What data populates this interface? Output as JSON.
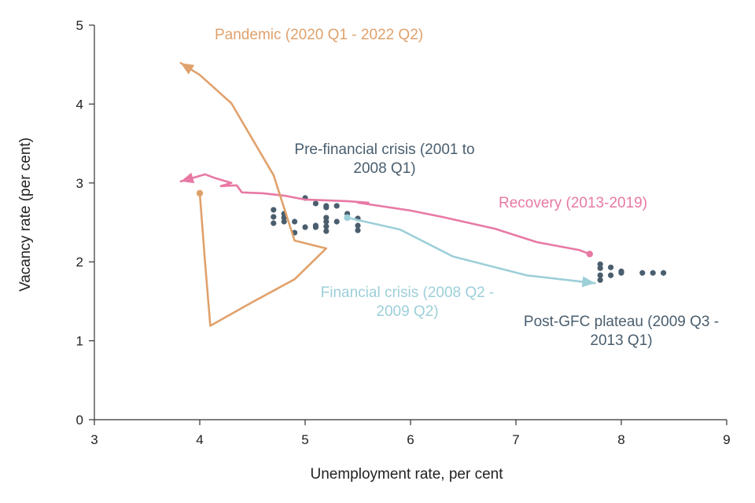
{
  "chart_data": {
    "type": "scatter",
    "title": "",
    "xlabel": "Unemployment rate, per cent",
    "ylabel": "Vacancy rate (per cent)",
    "xlim": [
      3,
      9
    ],
    "ylim": [
      0,
      5
    ],
    "xticks": [
      3,
      4,
      5,
      6,
      7,
      8,
      9
    ],
    "yticks": [
      0,
      1,
      2,
      3,
      4,
      5
    ],
    "xtick_labels": [
      "3",
      "4",
      "5",
      "6",
      "7",
      "8",
      "9"
    ],
    "ytick_labels": [
      "0",
      "1",
      "2",
      "3",
      "4",
      "5"
    ],
    "grid": false,
    "series": [
      {
        "name": "Pre-financial crisis (2001 to 2008 Q1)",
        "style": "points",
        "color": "#4a5e6e",
        "points": [
          [
            4.7,
            2.66
          ],
          [
            4.7,
            2.57
          ],
          [
            4.7,
            2.49
          ],
          [
            4.8,
            2.61
          ],
          [
            4.8,
            2.56
          ],
          [
            4.8,
            2.51
          ],
          [
            4.9,
            2.51
          ],
          [
            4.9,
            2.37
          ],
          [
            5.0,
            2.81
          ],
          [
            5.0,
            2.44
          ],
          [
            5.1,
            2.74
          ],
          [
            5.1,
            2.46
          ],
          [
            5.1,
            2.44
          ],
          [
            5.2,
            2.71
          ],
          [
            5.2,
            2.69
          ],
          [
            5.2,
            2.56
          ],
          [
            5.2,
            2.51
          ],
          [
            5.2,
            2.45
          ],
          [
            5.2,
            2.39
          ],
          [
            5.3,
            2.71
          ],
          [
            5.3,
            2.51
          ],
          [
            5.4,
            2.61
          ],
          [
            5.5,
            2.55
          ],
          [
            5.5,
            2.46
          ],
          [
            5.5,
            2.4
          ]
        ]
      },
      {
        "name": "Financial crisis (2008 Q2 - 2009 Q2)",
        "style": "arrow-line",
        "color": "#9dcfd9",
        "points": [
          [
            5.4,
            2.56
          ],
          [
            5.9,
            2.41
          ],
          [
            6.4,
            2.07
          ],
          [
            7.1,
            1.83
          ],
          [
            7.75,
            1.73
          ]
        ]
      },
      {
        "name": "Post-GFC plateau (2009 Q3 - 2013 Q1)",
        "style": "points",
        "color": "#4a5e6e",
        "points": [
          [
            7.8,
            1.97
          ],
          [
            7.8,
            1.92
          ],
          [
            7.8,
            1.83
          ],
          [
            7.8,
            1.77
          ],
          [
            7.9,
            1.93
          ],
          [
            7.9,
            1.83
          ],
          [
            8.0,
            1.88
          ],
          [
            8.0,
            1.86
          ],
          [
            8.2,
            1.86
          ],
          [
            8.3,
            1.86
          ],
          [
            8.4,
            1.86
          ]
        ]
      },
      {
        "name": "Recovery (2013-2019)",
        "style": "arrow-line",
        "color": "#e879a4",
        "points": [
          [
            7.7,
            2.1
          ],
          [
            7.6,
            2.15
          ],
          [
            7.2,
            2.25
          ],
          [
            6.8,
            2.42
          ],
          [
            6.3,
            2.57
          ],
          [
            6.0,
            2.65
          ],
          [
            5.6,
            2.73
          ],
          [
            5.5,
            2.75
          ],
          [
            5.6,
            2.75
          ],
          [
            5.4,
            2.77
          ],
          [
            5.0,
            2.79
          ],
          [
            4.8,
            2.84
          ],
          [
            4.6,
            2.87
          ],
          [
            4.4,
            2.88
          ],
          [
            4.35,
            2.97
          ],
          [
            4.2,
            2.96
          ],
          [
            4.3,
            3.0
          ],
          [
            4.15,
            3.06
          ],
          [
            4.05,
            3.11
          ],
          [
            3.95,
            3.07
          ],
          [
            3.82,
            3.02
          ]
        ]
      },
      {
        "name": "Pandemic (2020 Q1 - 2022 Q2)",
        "style": "arrow-line",
        "color": "#e0a16b",
        "points": [
          [
            4.0,
            2.87
          ],
          [
            4.05,
            2.0
          ],
          [
            4.1,
            1.19
          ],
          [
            4.5,
            1.49
          ],
          [
            4.9,
            1.78
          ],
          [
            5.2,
            2.17
          ],
          [
            4.9,
            2.27
          ],
          [
            4.7,
            3.1
          ],
          [
            4.3,
            4.01
          ],
          [
            4.0,
            4.37
          ],
          [
            3.82,
            4.52
          ]
        ]
      }
    ],
    "annotations": [
      {
        "lines": [
          "Pandemic (2020 Q1 - 2022 Q2)"
        ],
        "color": "#e0a16b",
        "series": "Pandemic (2020 Q1 - 2022 Q2)"
      },
      {
        "lines": [
          "Pre-financial crisis (2001 to",
          "2008 Q1)"
        ],
        "color": "#4a5e6e",
        "series": "Pre-financial crisis (2001 to 2008 Q1)"
      },
      {
        "lines": [
          "Recovery (2013-2019)"
        ],
        "color": "#e879a4",
        "series": "Recovery (2013-2019)"
      },
      {
        "lines": [
          "Financial crisis (2008 Q2 -",
          "2009 Q2)"
        ],
        "color": "#9dcfd9",
        "series": "Financial crisis (2008 Q2 - 2009 Q2)"
      },
      {
        "lines": [
          "Post-GFC plateau (2009 Q3 -",
          "2013 Q1)"
        ],
        "color": "#4a5e6e",
        "series": "Post-GFC plateau (2009 Q3 - 2013 Q1)"
      }
    ]
  }
}
